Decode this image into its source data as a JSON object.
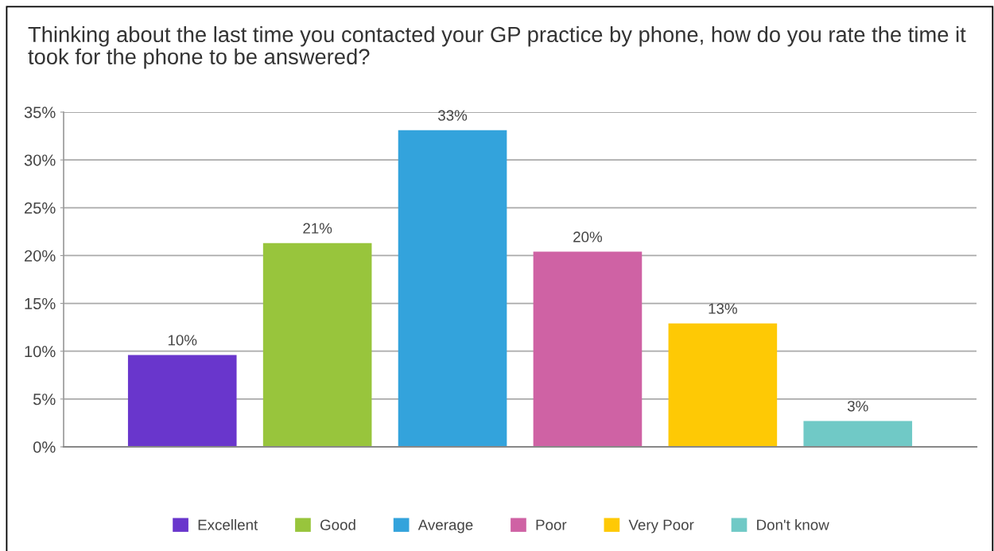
{
  "chart_data": {
    "type": "bar",
    "title": "Thinking about the last time you contacted your GP practice by phone, how do you rate the time it took for the phone to be answered?",
    "categories": [
      null
    ],
    "series": [
      {
        "name": "Excellent",
        "color": "#6936cc",
        "values": [
          9.6
        ],
        "value_labels": [
          "10%"
        ]
      },
      {
        "name": "Good",
        "color": "#98c53c",
        "values": [
          21.3
        ],
        "value_labels": [
          "21%"
        ]
      },
      {
        "name": "Average",
        "color": "#33a3dc",
        "values": [
          33.1
        ],
        "value_labels": [
          "33%"
        ]
      },
      {
        "name": "Poor",
        "color": "#cf62a4",
        "values": [
          20.4
        ],
        "value_labels": [
          "20%"
        ]
      },
      {
        "name": "Very Poor",
        "color": "#fec905",
        "values": [
          12.9
        ],
        "value_labels": [
          "13%"
        ]
      },
      {
        "name": "Don't know",
        "color": "#70c9c6",
        "values": [
          2.7
        ],
        "value_labels": [
          "3%"
        ]
      }
    ],
    "ylim": [
      0,
      35
    ],
    "yticks": [
      {
        "value": 0,
        "label": "0%"
      },
      {
        "value": 5,
        "label": "5%"
      },
      {
        "value": 10,
        "label": "10%"
      },
      {
        "value": 15,
        "label": "15%"
      },
      {
        "value": 20,
        "label": "20%"
      },
      {
        "value": 25,
        "label": "25%"
      },
      {
        "value": 30,
        "label": "30%"
      },
      {
        "value": 35,
        "label": "35%"
      }
    ],
    "grid": "y",
    "legend": "bottom"
  }
}
